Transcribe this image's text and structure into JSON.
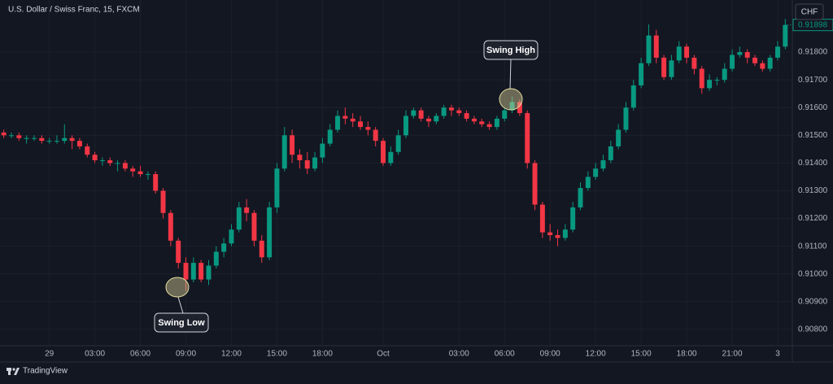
{
  "chart_data": {
    "type": "candlestick",
    "title": "U.S. Dollar / Swiss Franc, 15, FXCM",
    "currency": "CHF",
    "brand": "TradingView",
    "up_color": "#089981",
    "down_color": "#f23645",
    "grid": true,
    "annotations": [
      "Swing Low",
      "Swing High"
    ],
    "ylim": [
      0.90741,
      0.91988
    ],
    "yticks": [
      {
        "value": 0.908,
        "label": "0.90800"
      },
      {
        "value": 0.909,
        "label": "0.90900"
      },
      {
        "value": 0.91,
        "label": "0.91000"
      },
      {
        "value": 0.911,
        "label": "0.91100"
      },
      {
        "value": 0.912,
        "label": "0.91200"
      },
      {
        "value": 0.913,
        "label": "0.91300"
      },
      {
        "value": 0.914,
        "label": "0.91400"
      },
      {
        "value": 0.915,
        "label": "0.91500"
      },
      {
        "value": 0.916,
        "label": "0.91600"
      },
      {
        "value": 0.917,
        "label": "0.91700"
      },
      {
        "value": 0.918,
        "label": "0.91800"
      }
    ],
    "categories": [
      null,
      null,
      null,
      null,
      null,
      null,
      "29",
      null,
      null,
      null,
      null,
      null,
      "03:00",
      null,
      null,
      null,
      null,
      null,
      "06:00",
      null,
      null,
      null,
      null,
      null,
      "09:00",
      null,
      null,
      null,
      null,
      null,
      "12:00",
      null,
      null,
      null,
      null,
      null,
      "15:00",
      null,
      null,
      null,
      null,
      null,
      "18:00",
      null,
      null,
      null,
      null,
      null,
      null,
      null,
      "Oct",
      null,
      null,
      null,
      null,
      null,
      null,
      null,
      null,
      null,
      "03:00",
      null,
      null,
      null,
      null,
      null,
      "06:00",
      null,
      null,
      null,
      null,
      null,
      "09:00",
      null,
      null,
      null,
      null,
      null,
      "12:00",
      null,
      null,
      null,
      null,
      null,
      "15:00",
      null,
      null,
      null,
      null,
      null,
      "18:00",
      null,
      null,
      null,
      null,
      null,
      "21:00",
      null,
      null,
      null,
      null,
      null,
      "3",
      null
    ],
    "open": [
      0.9151,
      0.915,
      0.915,
      0.9149,
      0.9149,
      0.9149,
      0.9148,
      0.9148,
      0.9148,
      0.9149,
      0.9148,
      0.9146,
      0.9143,
      0.9141,
      0.9141,
      0.914,
      0.914,
      0.9138,
      0.9137,
      0.9136,
      0.9136,
      0.913,
      0.9122,
      0.9112,
      0.9104,
      0.9098,
      0.9104,
      0.9098,
      0.9103,
      0.9108,
      0.9111,
      0.9116,
      0.9124,
      0.9122,
      0.9112,
      0.9106,
      0.9124,
      0.9138,
      0.915,
      0.9143,
      0.9141,
      0.9138,
      0.9142,
      0.9147,
      0.9152,
      0.9157,
      0.9156,
      0.9155,
      0.9153,
      0.9152,
      0.9148,
      0.914,
      0.9144,
      0.915,
      0.9157,
      0.9159,
      0.9156,
      0.9155,
      0.9157,
      0.916,
      0.9159,
      0.9158,
      0.9156,
      0.9155,
      0.9154,
      0.9153,
      0.9156,
      0.9159,
      0.9162,
      0.9158,
      0.914,
      0.9125,
      0.9115,
      0.9114,
      0.9113,
      0.9116,
      0.9124,
      0.9131,
      0.9135,
      0.9138,
      0.9141,
      0.9146,
      0.9152,
      0.916,
      0.9168,
      0.9176,
      0.9186,
      0.9178,
      0.9171,
      0.9177,
      0.9182,
      0.9178,
      0.9174,
      0.9167,
      0.917,
      0.917,
      0.9174,
      0.9179,
      0.918,
      0.9178,
      0.9176,
      0.9174,
      0.9178,
      0.9182
    ],
    "high": [
      0.9152,
      0.9151,
      0.9151,
      0.915,
      0.915,
      0.915,
      0.9149,
      0.915,
      0.9154,
      0.915,
      0.9149,
      0.9147,
      0.9144,
      0.9142,
      0.9142,
      0.9141,
      0.9141,
      0.9139,
      0.9139,
      0.9137,
      0.9137,
      0.9131,
      0.9123,
      0.9113,
      0.9106,
      0.9106,
      0.9105,
      0.9105,
      0.911,
      0.9113,
      0.9118,
      0.9126,
      0.9127,
      0.9123,
      0.9114,
      0.9126,
      0.914,
      0.9153,
      0.9152,
      0.9145,
      0.9144,
      0.9144,
      0.9149,
      0.9154,
      0.9159,
      0.916,
      0.9158,
      0.9157,
      0.9155,
      0.9153,
      0.9149,
      0.9146,
      0.9152,
      0.9159,
      0.916,
      0.916,
      0.9157,
      0.9158,
      0.9161,
      0.9161,
      0.916,
      0.9159,
      0.9157,
      0.9156,
      0.9155,
      0.9157,
      0.916,
      0.9164,
      0.9163,
      0.9159,
      0.9141,
      0.9126,
      0.9118,
      0.9116,
      0.9118,
      0.9126,
      0.9133,
      0.9137,
      0.914,
      0.9143,
      0.9148,
      0.9154,
      0.9162,
      0.917,
      0.9178,
      0.919,
      0.9188,
      0.9179,
      0.9179,
      0.9184,
      0.9183,
      0.9179,
      0.9175,
      0.9172,
      0.9171,
      0.9176,
      0.9181,
      0.9182,
      0.9181,
      0.9179,
      0.9177,
      0.9179,
      0.9184,
      0.9192
    ],
    "low": [
      0.9149,
      0.9149,
      0.9148,
      0.9147,
      0.9148,
      0.9147,
      0.9147,
      0.9147,
      0.9147,
      0.9145,
      0.9145,
      0.9142,
      0.914,
      0.9139,
      0.9139,
      0.9137,
      0.9137,
      0.9135,
      0.9135,
      0.9134,
      0.9129,
      0.912,
      0.911,
      0.9102,
      0.9094,
      0.9097,
      0.9097,
      0.9096,
      0.9102,
      0.9106,
      0.911,
      0.9115,
      0.9119,
      0.911,
      0.9104,
      0.9105,
      0.9122,
      0.9137,
      0.914,
      0.9138,
      0.9136,
      0.9137,
      0.914,
      0.9146,
      0.9151,
      0.9154,
      0.9153,
      0.9152,
      0.915,
      0.9146,
      0.9139,
      0.9139,
      0.9143,
      0.9149,
      0.9156,
      0.9155,
      0.9153,
      0.9154,
      0.9156,
      0.9157,
      0.9157,
      0.9155,
      0.9154,
      0.9153,
      0.9152,
      0.9152,
      0.9155,
      0.9158,
      0.9157,
      0.9138,
      0.9123,
      0.9113,
      0.9112,
      0.911,
      0.9112,
      0.9115,
      0.9123,
      0.913,
      0.9134,
      0.9137,
      0.914,
      0.9145,
      0.9151,
      0.9159,
      0.9167,
      0.9175,
      0.9176,
      0.917,
      0.917,
      0.9176,
      0.9176,
      0.9172,
      0.9165,
      0.9166,
      0.9168,
      0.9169,
      0.9173,
      0.9178,
      0.9176,
      0.9175,
      0.9173,
      0.9173,
      0.9177,
      0.9181
    ],
    "close": [
      0.915,
      0.915,
      0.9149,
      0.9149,
      0.9149,
      0.9148,
      0.9148,
      0.9148,
      0.9149,
      0.9148,
      0.9146,
      0.9143,
      0.9141,
      0.9141,
      0.914,
      0.914,
      0.9138,
      0.9137,
      0.9136,
      0.9136,
      0.913,
      0.9122,
      0.9112,
      0.9104,
      0.9098,
      0.9104,
      0.9098,
      0.9103,
      0.9108,
      0.9111,
      0.9116,
      0.9124,
      0.9122,
      0.9112,
      0.9106,
      0.9124,
      0.9138,
      0.915,
      0.9143,
      0.9141,
      0.9138,
      0.9142,
      0.9147,
      0.9152,
      0.9157,
      0.9156,
      0.9155,
      0.9153,
      0.9152,
      0.9148,
      0.914,
      0.9144,
      0.915,
      0.9157,
      0.9159,
      0.9156,
      0.9155,
      0.9157,
      0.916,
      0.9159,
      0.9158,
      0.9156,
      0.9155,
      0.9154,
      0.9153,
      0.9156,
      0.9159,
      0.9162,
      0.9158,
      0.914,
      0.9125,
      0.9115,
      0.9114,
      0.9113,
      0.9116,
      0.9124,
      0.9131,
      0.9135,
      0.9138,
      0.9141,
      0.9146,
      0.9152,
      0.916,
      0.9168,
      0.9176,
      0.9186,
      0.9178,
      0.9171,
      0.9177,
      0.9182,
      0.9178,
      0.9174,
      0.9167,
      0.917,
      0.917,
      0.9174,
      0.9179,
      0.918,
      0.9178,
      0.9176,
      0.9174,
      0.9178,
      0.9182,
      0.91898
    ]
  }
}
